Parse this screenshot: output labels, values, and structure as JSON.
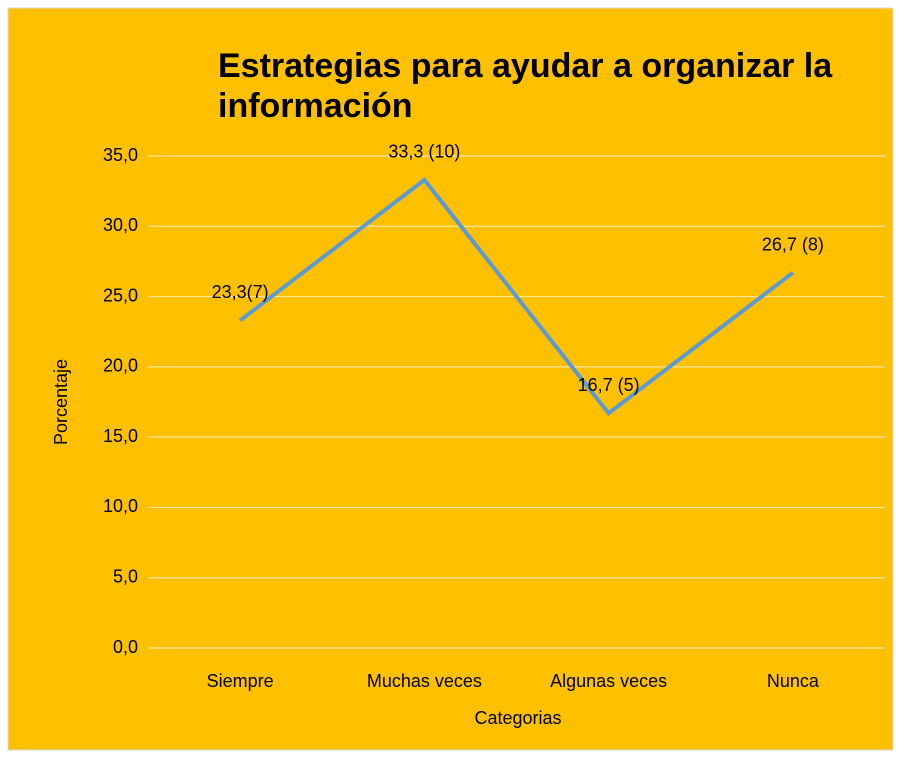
{
  "chart_data": {
    "type": "line",
    "title": "Estrategias para ayudar a organizar la información",
    "x_label": "Categorias",
    "y_label": "Porcentaje",
    "categories": [
      "Siempre",
      "Muchas veces",
      "Algunas veces",
      "Nunca"
    ],
    "series": [
      {
        "name": "Porcentaje",
        "color": "#5b9bd5",
        "values": [
          23.3,
          33.3,
          16.7,
          26.7
        ],
        "value_labels": [
          "23,3(7)",
          "33,3 (10)",
          "16,7 (5)",
          "26,7 (8)"
        ]
      }
    ],
    "ylim": [
      0,
      35
    ],
    "yticks": [
      {
        "value": 0,
        "label": "0,0"
      },
      {
        "value": 5,
        "label": "5,0"
      },
      {
        "value": 10,
        "label": "10,0"
      },
      {
        "value": 15,
        "label": "15,0"
      },
      {
        "value": 20,
        "label": "20,0"
      },
      {
        "value": 25,
        "label": "25,0"
      },
      {
        "value": 30,
        "label": "30,0"
      },
      {
        "value": 35,
        "label": "35,0"
      }
    ],
    "grid": true,
    "background": "#ffc000"
  }
}
